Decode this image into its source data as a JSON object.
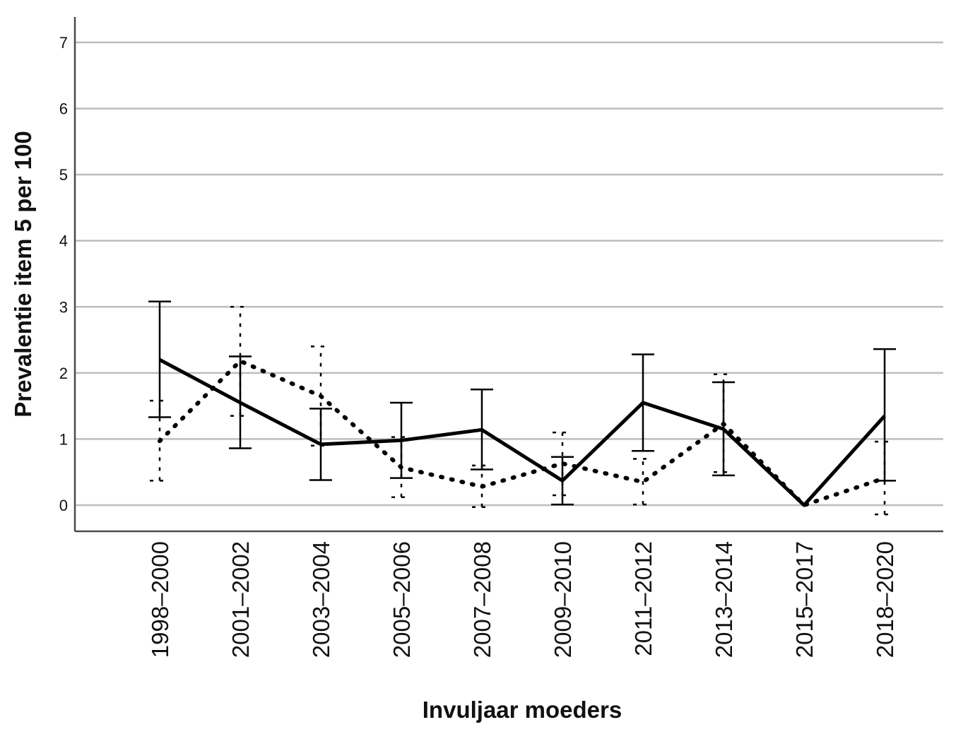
{
  "chart_data": {
    "type": "line",
    "title": "",
    "xlabel": "Invuljaar moeders",
    "ylabel": "Prevalentie item 5 per 100",
    "ylim": [
      -0.4,
      7.4
    ],
    "yticks": [
      0,
      1,
      2,
      3,
      4,
      5,
      6,
      7
    ],
    "grid": true,
    "legend": "none",
    "categories": [
      "1998–2000",
      "2001–2002",
      "2003–2004",
      "2005–2006",
      "2007–2008",
      "2009–2010",
      "2011–2012",
      "2013–2014",
      "2015–2017",
      "2018–2020"
    ],
    "series": [
      {
        "style": "solid",
        "values": [
          2.2,
          1.55,
          0.92,
          0.98,
          1.14,
          0.37,
          1.55,
          1.15,
          0.0,
          1.35
        ],
        "ci_low": [
          1.33,
          0.86,
          0.38,
          0.41,
          0.54,
          0.01,
          0.82,
          0.45,
          0.0,
          0.37
        ],
        "ci_high": [
          3.08,
          2.25,
          1.46,
          1.55,
          1.75,
          0.73,
          2.28,
          1.86,
          0.0,
          2.36
        ]
      },
      {
        "style": "dotted",
        "values": [
          0.97,
          2.18,
          1.65,
          0.57,
          0.28,
          0.63,
          0.35,
          1.23,
          0.0,
          0.41
        ],
        "ci_low": [
          0.37,
          1.35,
          0.9,
          0.12,
          -0.03,
          0.15,
          0.01,
          0.5,
          0.0,
          -0.14
        ],
        "ci_high": [
          1.58,
          3.0,
          2.4,
          1.03,
          0.6,
          1.1,
          0.7,
          1.98,
          0.0,
          0.96
        ]
      }
    ]
  }
}
